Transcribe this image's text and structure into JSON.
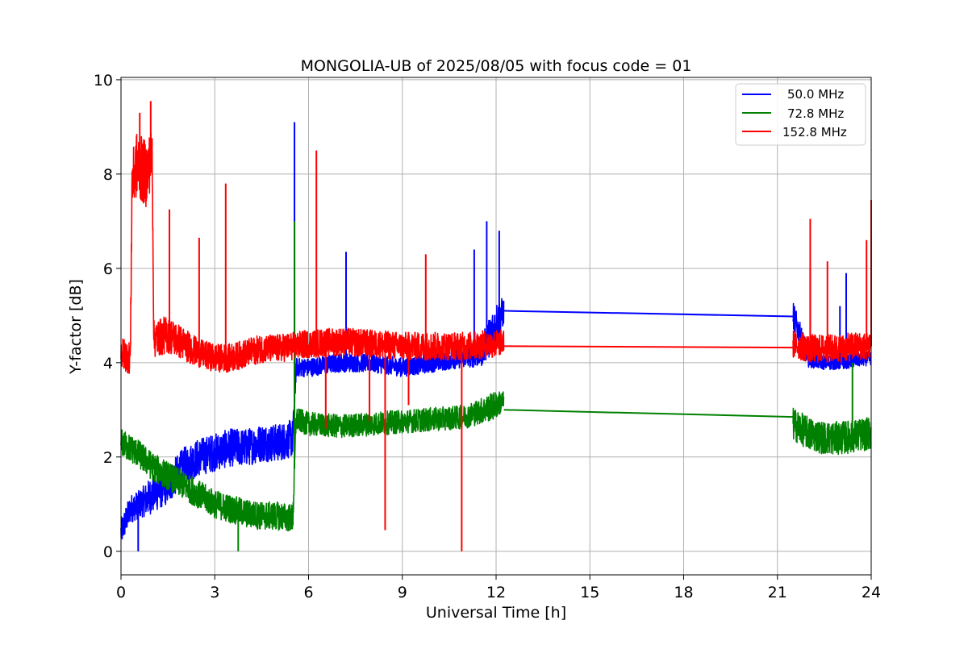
{
  "chart_data": {
    "type": "line",
    "title": "MONGOLIA-UB of 2025/08/05 with focus code = 01",
    "xlabel": "Universal Time [h]",
    "ylabel": "Y-factor [dB]",
    "xlim": [
      0,
      24
    ],
    "ylim": [
      -0.5,
      10.05
    ],
    "xticks": [
      "0",
      "3",
      "6",
      "9",
      "12",
      "15",
      "18",
      "21",
      "24"
    ],
    "yticks": [
      "0",
      "2",
      "4",
      "6",
      "8",
      "10"
    ],
    "grid": true,
    "legend_position": "top-right",
    "series": [
      {
        "name": "50.0 MHz",
        "color": "#0000ff",
        "x": [
          0,
          0.3,
          0.6,
          1.0,
          1.5,
          2.0,
          2.5,
          3.0,
          3.5,
          4.0,
          4.5,
          5.0,
          5.5,
          5.6,
          6.0,
          7.0,
          8.0,
          9.0,
          10.0,
          11.0,
          11.5,
          12.0,
          12.25,
          21.5,
          22.0,
          22.5,
          23.0,
          23.5,
          24.0
        ],
        "center": [
          0.4,
          0.9,
          1.0,
          1.2,
          1.4,
          1.8,
          2.0,
          2.1,
          2.2,
          2.2,
          2.3,
          2.3,
          2.4,
          3.9,
          3.9,
          4.0,
          4.0,
          3.9,
          4.0,
          4.1,
          4.2,
          4.8,
          5.1,
          5.0,
          4.1,
          4.0,
          4.0,
          4.05,
          4.1
        ],
        "spread": [
          0.3,
          0.3,
          0.3,
          0.4,
          0.4,
          0.4,
          0.4,
          0.4,
          0.4,
          0.4,
          0.4,
          0.4,
          0.4,
          0.2,
          0.2,
          0.2,
          0.2,
          0.2,
          0.2,
          0.2,
          0.3,
          0.5,
          0.3,
          0.3,
          0.2,
          0.15,
          0.15,
          0.15,
          0.15
        ],
        "spikes": [
          [
            5.55,
            9.1
          ],
          [
            7.2,
            6.35
          ],
          [
            11.7,
            7.0
          ],
          [
            11.3,
            6.4
          ],
          [
            12.1,
            6.8
          ],
          [
            22.05,
            6.0
          ],
          [
            23.2,
            5.9
          ],
          [
            23.0,
            5.2
          ],
          [
            0.55,
            0.0
          ]
        ]
      },
      {
        "name": "72.8 MHz",
        "color": "#008000",
        "x": [
          0,
          0.5,
          1.0,
          1.5,
          2.0,
          2.5,
          3.0,
          3.5,
          4.0,
          4.5,
          5.0,
          5.5,
          5.6,
          6.0,
          7.0,
          8.0,
          9.0,
          10.0,
          11.0,
          12.0,
          12.25,
          21.5,
          22.0,
          22.5,
          23.0,
          23.5,
          24.0
        ],
        "center": [
          2.3,
          2.1,
          1.8,
          1.6,
          1.4,
          1.2,
          1.0,
          0.9,
          0.8,
          0.75,
          0.75,
          0.7,
          2.8,
          2.7,
          2.65,
          2.7,
          2.75,
          2.8,
          2.85,
          3.1,
          3.2,
          2.7,
          2.5,
          2.4,
          2.4,
          2.45,
          2.5
        ],
        "spread": [
          0.3,
          0.3,
          0.3,
          0.3,
          0.3,
          0.3,
          0.3,
          0.3,
          0.3,
          0.3,
          0.3,
          0.3,
          0.25,
          0.25,
          0.25,
          0.25,
          0.25,
          0.25,
          0.25,
          0.3,
          0.2,
          0.35,
          0.35,
          0.35,
          0.35,
          0.35,
          0.35
        ],
        "spikes": [
          [
            5.55,
            7.0
          ],
          [
            23.4,
            4.0
          ],
          [
            3.75,
            0.0
          ]
        ]
      },
      {
        "name": "152.8 MHz",
        "color": "#ff0000",
        "x": [
          0,
          0.3,
          0.35,
          0.5,
          0.8,
          1.0,
          1.05,
          1.5,
          2.0,
          2.5,
          3.0,
          3.5,
          4.0,
          4.5,
          5.0,
          5.5,
          6.0,
          7.0,
          8.0,
          9.0,
          10.0,
          11.0,
          12.0,
          12.25,
          21.5,
          22.0,
          22.5,
          23.0,
          23.5,
          24.0
        ],
        "center": [
          4.2,
          4.1,
          7.8,
          8.2,
          8.0,
          8.4,
          4.5,
          4.6,
          4.4,
          4.2,
          4.1,
          4.1,
          4.2,
          4.3,
          4.3,
          4.35,
          4.4,
          4.45,
          4.4,
          4.35,
          4.35,
          4.35,
          4.4,
          4.45,
          4.4,
          4.3,
          4.3,
          4.3,
          4.35,
          4.35
        ],
        "spread": [
          0.35,
          0.35,
          0.6,
          0.7,
          0.7,
          0.6,
          0.4,
          0.4,
          0.35,
          0.3,
          0.3,
          0.3,
          0.3,
          0.3,
          0.3,
          0.3,
          0.3,
          0.3,
          0.3,
          0.3,
          0.3,
          0.3,
          0.3,
          0.25,
          0.3,
          0.3,
          0.3,
          0.3,
          0.3,
          0.3
        ],
        "spikes": [
          [
            0.6,
            9.3
          ],
          [
            0.95,
            9.55
          ],
          [
            1.55,
            7.25
          ],
          [
            2.5,
            6.65
          ],
          [
            3.35,
            7.8
          ],
          [
            6.25,
            8.5
          ],
          [
            6.55,
            2.6
          ],
          [
            7.95,
            2.75
          ],
          [
            8.45,
            0.45
          ],
          [
            9.2,
            3.1
          ],
          [
            10.9,
            0.0
          ],
          [
            9.75,
            6.3
          ],
          [
            22.05,
            7.05
          ],
          [
            22.6,
            6.15
          ],
          [
            23.85,
            6.6
          ],
          [
            24.0,
            7.45
          ]
        ]
      }
    ],
    "gap_lines": [
      {
        "series": "50.0 MHz",
        "from": [
          12.25,
          5.1
        ],
        "to": [
          21.5,
          4.98
        ]
      },
      {
        "series": "72.8 MHz",
        "from": [
          12.25,
          3.0
        ],
        "to": [
          21.5,
          2.85
        ]
      },
      {
        "series": "152.8 MHz",
        "from": [
          12.25,
          4.35
        ],
        "to": [
          21.5,
          4.32
        ]
      }
    ],
    "segments": [
      [
        0,
        12.25
      ],
      [
        21.5,
        24
      ]
    ]
  }
}
